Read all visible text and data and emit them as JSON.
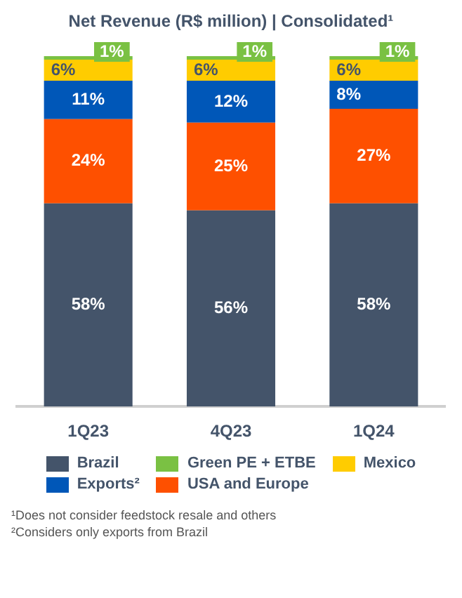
{
  "chart_data": {
    "type": "bar",
    "title": "Net Revenue (R$ million) | Consolidated¹",
    "categories": [
      "1Q23",
      "4Q23",
      "1Q24"
    ],
    "stacked": true,
    "legend": "bottom",
    "tick_labels": "x",
    "series": [
      {
        "name": "Brazil",
        "color": "#44546a",
        "values": [
          58,
          56,
          58
        ],
        "value_labels": [
          "58%",
          "56%",
          "58%"
        ]
      },
      {
        "name": "USA and Europe",
        "color": "#fe5000",
        "values": [
          24,
          25,
          27
        ],
        "value_labels": [
          "24%",
          "25%",
          "27%"
        ]
      },
      {
        "name": "Exports²",
        "color": "#0057b8",
        "values": [
          11,
          12,
          8
        ],
        "value_labels": [
          "11%",
          "12%",
          "8%"
        ]
      },
      {
        "name": "Mexico",
        "color": "#ffcc00",
        "values": [
          6,
          6,
          6
        ],
        "value_labels": [
          "6%",
          "6%",
          "6%"
        ]
      },
      {
        "name": "Green PE + ETBE",
        "color": "#7ac143",
        "values": [
          1,
          1,
          1
        ],
        "value_labels": [
          "1%",
          "1%",
          "1%"
        ]
      }
    ],
    "annotations": [
      "¹Does not consider feedstock resale and others",
      "²Considers only exports from Brazil"
    ]
  }
}
